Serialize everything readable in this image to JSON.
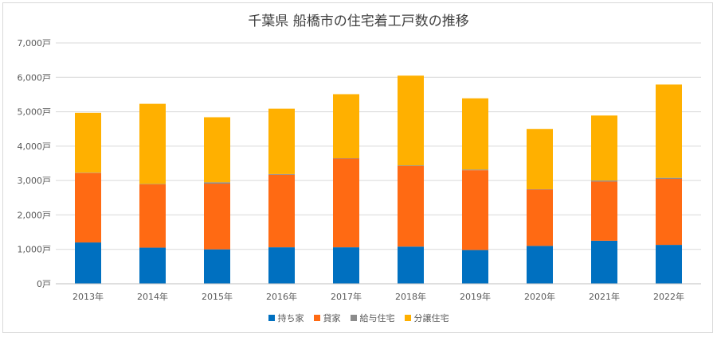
{
  "chart_data": {
    "type": "bar",
    "stacked": true,
    "title": "千葉県 船橋市の住宅着工戸数の推移",
    "categories": [
      "2013年",
      "2014年",
      "2015年",
      "2016年",
      "2017年",
      "2018年",
      "2019年",
      "2020年",
      "2021年",
      "2022年"
    ],
    "y_ticks": [
      "0戸",
      "1,000戸",
      "2,000戸",
      "3,000戸",
      "4,000戸",
      "5,000戸",
      "6,000戸",
      "7,000戸"
    ],
    "ylim": [
      0,
      7000
    ],
    "grid": true,
    "legend_position": "bottom",
    "series": [
      {
        "name": "持ち家",
        "color": "#0070C0",
        "values": [
          1200,
          1050,
          1000,
          1060,
          1060,
          1080,
          980,
          1100,
          1250,
          1130
        ]
      },
      {
        "name": "貸家",
        "color": "#FF6A13",
        "values": [
          2020,
          1840,
          1910,
          2110,
          2580,
          2340,
          2320,
          1640,
          1720,
          1920
        ]
      },
      {
        "name": "給与住宅",
        "color": "#8C8C8C",
        "values": [
          10,
          10,
          40,
          20,
          10,
          20,
          20,
          10,
          30,
          30
        ]
      },
      {
        "name": "分譲住宅",
        "color": "#FFB000",
        "values": [
          1740,
          2330,
          1890,
          1900,
          1860,
          2610,
          2070,
          1750,
          1890,
          2710
        ]
      }
    ]
  }
}
